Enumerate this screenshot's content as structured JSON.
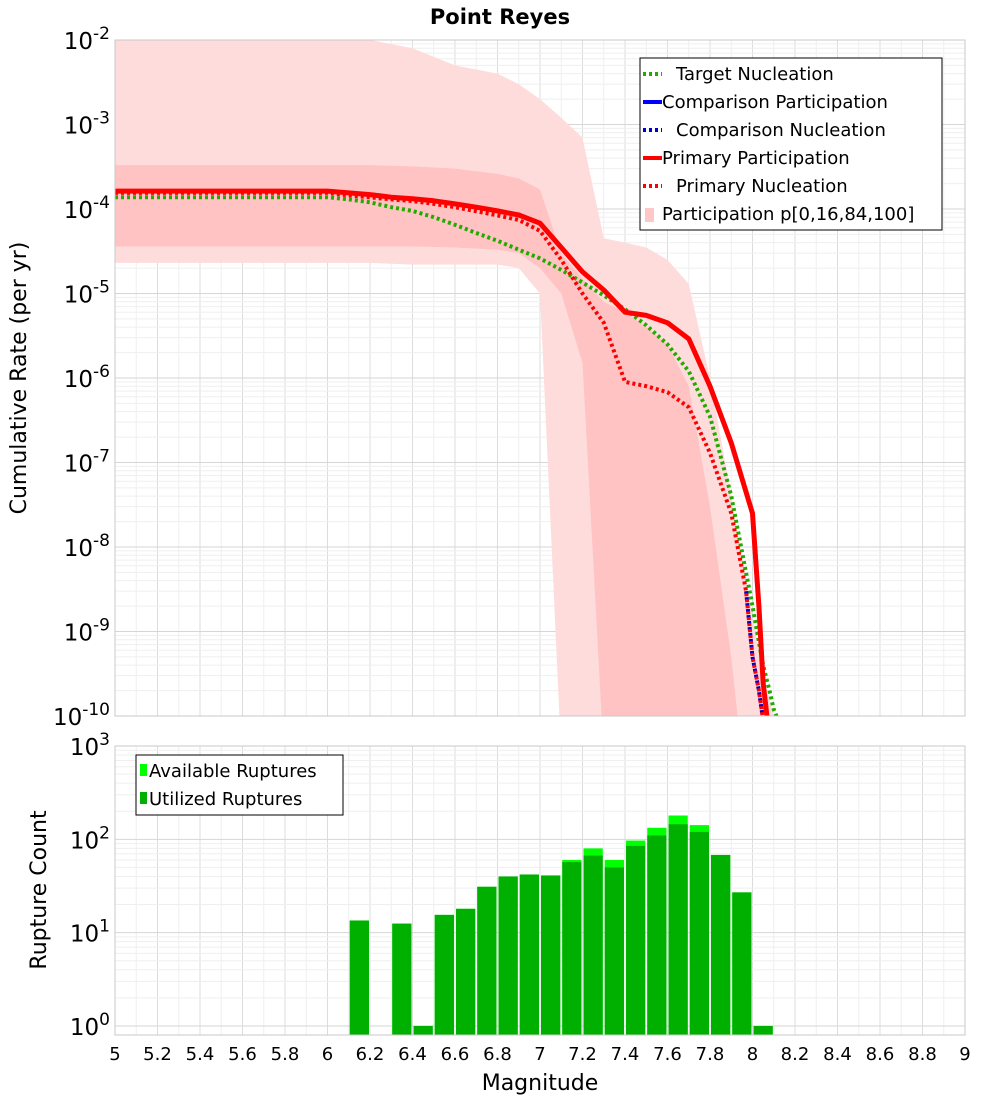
{
  "chart_data": [
    {
      "type": "line",
      "title": "Point Reyes",
      "xlabel": "",
      "ylabel": "Cumulative Rate (per yr)",
      "xscale": "linear",
      "yscale": "log",
      "xlim": [
        5,
        9
      ],
      "ylim": [
        1e-10,
        0.01
      ],
      "y_tick_labels": [
        {
          "base": "10",
          "exp": "-10"
        },
        {
          "base": "10",
          "exp": "-9"
        },
        {
          "base": "10",
          "exp": "-8"
        },
        {
          "base": "10",
          "exp": "-7"
        },
        {
          "base": "10",
          "exp": "-6"
        },
        {
          "base": "10",
          "exp": "-5"
        },
        {
          "base": "10",
          "exp": "-4"
        },
        {
          "base": "10",
          "exp": "-3"
        },
        {
          "base": "10",
          "exp": "-2"
        }
      ],
      "legend_position": "top-right",
      "legend": [
        {
          "label": "Target Nucleation",
          "color": "#22aa00",
          "style": "dotted"
        },
        {
          "label": "Comparison Participation",
          "color": "#0000ff",
          "style": "solid"
        },
        {
          "label": "Comparison Nucleation",
          "color": "#0000cc",
          "style": "dotted"
        },
        {
          "label": "Primary Participation",
          "color": "#ff0000",
          "style": "solid"
        },
        {
          "label": "Primary Nucleation",
          "color": "#ff0000",
          "style": "dotted"
        },
        {
          "label": "Participation p[0,16,84,100]",
          "color": "#ffc8c8",
          "style": "fill"
        }
      ],
      "bands": {
        "outer_x": [
          5,
          5.2,
          5.4,
          5.6,
          5.8,
          6,
          6.2,
          6.4,
          6.6,
          6.8,
          6.9,
          7,
          7.1,
          7.2,
          7.3,
          7.4,
          7.5,
          7.6,
          7.7,
          7.8,
          7.9,
          8.0,
          8.05,
          8.1
        ],
        "outer_lower": [
          2.3e-05,
          2.3e-05,
          2.3e-05,
          2.3e-05,
          2.3e-05,
          2.3e-05,
          2.3e-05,
          2.2e-05,
          2.2e-05,
          2.2e-05,
          2e-05,
          1e-05,
          null,
          null,
          null,
          null,
          null,
          null,
          null,
          null,
          null,
          null,
          null,
          null
        ],
        "outer_upper": [
          0.01,
          0.01,
          0.01,
          0.01,
          0.01,
          0.01,
          0.01,
          0.008,
          0.005,
          0.004,
          0.003,
          0.002,
          0.0012,
          0.0007,
          4.5e-05,
          4e-05,
          3.5e-05,
          2.5e-05,
          1.3e-05,
          1e-06,
          4e-08,
          1.5e-09,
          3e-10,
          1e-10
        ],
        "inner_x": [
          5,
          5.2,
          5.4,
          5.6,
          5.8,
          6,
          6.2,
          6.4,
          6.6,
          6.8,
          6.9,
          7,
          7.1,
          7.2,
          7.3,
          7.4,
          7.5,
          7.6,
          7.7,
          7.8,
          7.9,
          7.93
        ],
        "inner_lower": [
          3.6e-05,
          3.6e-05,
          3.6e-05,
          3.6e-05,
          3.6e-05,
          3.6e-05,
          3.6e-05,
          3.6e-05,
          3.5e-05,
          3.3e-05,
          3e-05,
          2e-05,
          1e-05,
          1.5e-06,
          null,
          null,
          null,
          null,
          null,
          null,
          null,
          null
        ],
        "inner_upper": [
          0.00033,
          0.00033,
          0.00033,
          0.00033,
          0.00033,
          0.00033,
          0.00033,
          0.00032,
          0.0003,
          0.00026,
          0.00023,
          0.00017,
          3e-05,
          1.5e-05,
          8e-06,
          6e-06,
          4e-06,
          2.5e-06,
          8e-07,
          3e-08,
          5e-10,
          1e-10
        ]
      },
      "series": [
        {
          "name": "Target Nucleation",
          "color": "#22aa00",
          "style": "dotted",
          "width": 4,
          "x": [
            5,
            5.5,
            6,
            6.1,
            6.2,
            6.3,
            6.4,
            6.5,
            6.6,
            6.7,
            6.8,
            6.9,
            7,
            7.1,
            7.2,
            7.3,
            7.4,
            7.5,
            7.6,
            7.7,
            7.8,
            7.9,
            8,
            8.05,
            8.08,
            8.1,
            8.12
          ],
          "y": [
            0.000138,
            0.000138,
            0.000138,
            0.00013,
            0.00012,
            0.000105,
            9.5e-05,
            8e-05,
            6.5e-05,
            5.2e-05,
            4.2e-05,
            3.3e-05,
            2.6e-05,
            1.9e-05,
            1.35e-05,
            9.5e-06,
            6.5e-06,
            4.2e-06,
            2.5e-06,
            1.2e-06,
            3.5e-07,
            4e-08,
            2e-09,
            4e-10,
            2e-10,
            1.2e-10,
            9e-11
          ]
        },
        {
          "name": "Comparison Participation",
          "color": "#0000ff",
          "style": "solid",
          "width": 4,
          "x": [
            8.0,
            8.03,
            8.05,
            8.07
          ],
          "y": [
            2.5e-08,
            2e-09,
            2.5e-10,
            9e-11
          ]
        },
        {
          "name": "Comparison Nucleation",
          "color": "#0000cc",
          "style": "dotted",
          "width": 4,
          "x": [
            7.97,
            8.0,
            8.03,
            8.05
          ],
          "y": [
            3e-09,
            5e-10,
            2e-10,
            9e-11
          ]
        },
        {
          "name": "Primary Participation",
          "color": "#ff0000",
          "style": "solid",
          "width": 5,
          "x": [
            5,
            5.5,
            6,
            6.1,
            6.2,
            6.3,
            6.4,
            6.5,
            6.6,
            6.7,
            6.8,
            6.9,
            7,
            7.1,
            7.2,
            7.3,
            7.4,
            7.5,
            7.6,
            7.7,
            7.8,
            7.9,
            8,
            8.03,
            8.05,
            8.07
          ],
          "y": [
            0.000163,
            0.000163,
            0.000163,
            0.000155,
            0.000148,
            0.000138,
            0.000132,
            0.000125,
            0.000115,
            0.000105,
            9.5e-05,
            8.5e-05,
            6.8e-05,
            3.5e-05,
            1.8e-05,
            1.1e-05,
            6e-06,
            5.5e-06,
            4.5e-06,
            2.9e-06,
            8e-07,
            1.7e-07,
            2.5e-08,
            2e-09,
            2.5e-10,
            9e-11
          ]
        },
        {
          "name": "Primary Nucleation",
          "color": "#ff0000",
          "style": "dotted",
          "width": 4,
          "x": [
            5,
            5.5,
            6,
            6.1,
            6.2,
            6.3,
            6.4,
            6.5,
            6.6,
            6.7,
            6.8,
            6.9,
            7,
            7.1,
            7.2,
            7.3,
            7.4,
            7.5,
            7.6,
            7.7,
            7.8,
            7.9,
            7.97,
            8.0,
            8.03,
            8.05
          ],
          "y": [
            0.000155,
            0.000155,
            0.000155,
            0.000145,
            0.000137,
            0.00013,
            0.000124,
            0.000115,
            0.000105,
            9.4e-05,
            8.4e-05,
            7.4e-05,
            5.5e-05,
            2.5e-05,
            1e-05,
            4.5e-06,
            9e-07,
            8e-07,
            6.8e-07,
            4.5e-07,
            1.3e-07,
            2.5e-08,
            3e-09,
            5e-10,
            2e-10,
            9e-11
          ]
        }
      ]
    },
    {
      "type": "bar",
      "title": "",
      "xlabel": "Magnitude",
      "ylabel": "Rupture Count",
      "xscale": "linear",
      "yscale": "log",
      "xlim": [
        5,
        9
      ],
      "ylim": [
        0.8,
        1000
      ],
      "x_tick_labels": [
        "5",
        "5.2",
        "5.4",
        "5.6",
        "5.8",
        "6",
        "6.2",
        "6.4",
        "6.6",
        "6.8",
        "7",
        "7.2",
        "7.4",
        "7.6",
        "7.8",
        "8",
        "8.2",
        "8.4",
        "8.6",
        "8.8",
        "9"
      ],
      "y_tick_labels": [
        {
          "base": "10",
          "exp": "0"
        },
        {
          "base": "10",
          "exp": "1"
        },
        {
          "base": "10",
          "exp": "2"
        },
        {
          "base": "10",
          "exp": "3"
        }
      ],
      "legend_position": "top-left",
      "legend": [
        {
          "label": "Available Ruptures",
          "color": "#00ff00"
        },
        {
          "label": "Utilized Ruptures",
          "color": "#00b000"
        }
      ],
      "bin_centers": [
        6.15,
        6.35,
        6.45,
        6.55,
        6.65,
        6.75,
        6.85,
        6.95,
        7.05,
        7.15,
        7.25,
        7.35,
        7.45,
        7.55,
        7.65,
        7.75,
        7.85,
        7.95,
        8.05
      ],
      "bin_width": 0.1,
      "series": [
        {
          "name": "Available Ruptures",
          "color": "#00ff00",
          "values": [
            13.5,
            12.5,
            1,
            15.5,
            18,
            31,
            40,
            42,
            41,
            60,
            80,
            60,
            97,
            133,
            180,
            142,
            68,
            27,
            1
          ]
        },
        {
          "name": "Utilized Ruptures",
          "color": "#00b000",
          "values": [
            13.5,
            12.5,
            1,
            15.5,
            18,
            31,
            40,
            42,
            41,
            57,
            67,
            50,
            85,
            110,
            145,
            120,
            68,
            27,
            1
          ]
        }
      ]
    }
  ]
}
